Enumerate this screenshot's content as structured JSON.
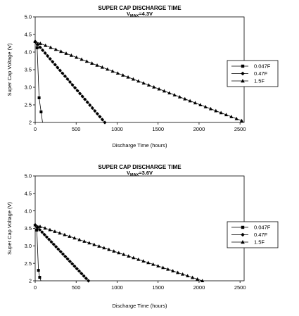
{
  "chart_data": [
    {
      "type": "line",
      "title": "SUPER CAP DISCHARGE TIME",
      "subtitle": {
        "main": "V",
        "sub": "MAX",
        "suffix": "=4.3V"
      },
      "xlabel": "Discharge Time (hours)",
      "ylabel": "Super Cap Voltage (V)",
      "xlim": [
        0,
        2550
      ],
      "ylim": [
        2,
        5
      ],
      "xticks": [
        "0",
        "500",
        "1000",
        "1500",
        "2000",
        "2500"
      ],
      "xtick_values": [
        0,
        500,
        1000,
        1500,
        2000,
        2500
      ],
      "yticks": [
        "2",
        "2.5",
        "3.0",
        "3.5",
        "4.0",
        "4.5",
        "5.0"
      ],
      "ytick_values": [
        2,
        2.5,
        3,
        3.5,
        4,
        4.5,
        5
      ],
      "legend_position": "right",
      "series": [
        {
          "name": "0.047F",
          "marker": "square",
          "x": [
            0,
            24,
            48,
            72,
            90
          ],
          "y": [
            4.3,
            4.12,
            2.7,
            2.3,
            2.0
          ]
        },
        {
          "name": "0.47F",
          "marker": "diamond",
          "x": [
            0,
            850
          ],
          "y": [
            4.3,
            2.0
          ],
          "marker_count": 29
        },
        {
          "name": "1.5F",
          "marker": "triangle",
          "x": [
            0,
            2520
          ],
          "y": [
            4.3,
            2.05
          ],
          "marker_count": 41
        }
      ]
    },
    {
      "type": "line",
      "title": "SUPER CAP DISCHARGE TIME",
      "subtitle": {
        "main": "V",
        "sub": "MAX",
        "suffix": "=3.6V"
      },
      "xlabel": "Discharge Time (hours)",
      "ylabel": "Super Cap Voltage (V)",
      "xlim": [
        0,
        2550
      ],
      "ylim": [
        2,
        5
      ],
      "xticks": [
        "0",
        "500",
        "1000",
        "1500",
        "2000",
        "2500"
      ],
      "xtick_values": [
        0,
        500,
        1000,
        1500,
        2000,
        2500
      ],
      "yticks": [
        "2",
        "2.5",
        "3.0",
        "3.5",
        "4.0",
        "4.5",
        "5.0"
      ],
      "ytick_values": [
        2,
        2.5,
        3,
        3.5,
        4,
        4.5,
        5
      ],
      "legend_position": "right",
      "series": [
        {
          "name": "0.047F",
          "marker": "square",
          "x": [
            0,
            20,
            40,
            55,
            70
          ],
          "y": [
            3.6,
            3.45,
            2.3,
            2.1,
            2.0
          ]
        },
        {
          "name": "0.47F",
          "marker": "diamond",
          "x": [
            0,
            650
          ],
          "y": [
            3.6,
            2.0
          ],
          "marker_count": 24
        },
        {
          "name": "1.5F",
          "marker": "triangle",
          "x": [
            0,
            2040
          ],
          "y": [
            3.6,
            2.0
          ],
          "marker_count": 35
        }
      ]
    }
  ]
}
